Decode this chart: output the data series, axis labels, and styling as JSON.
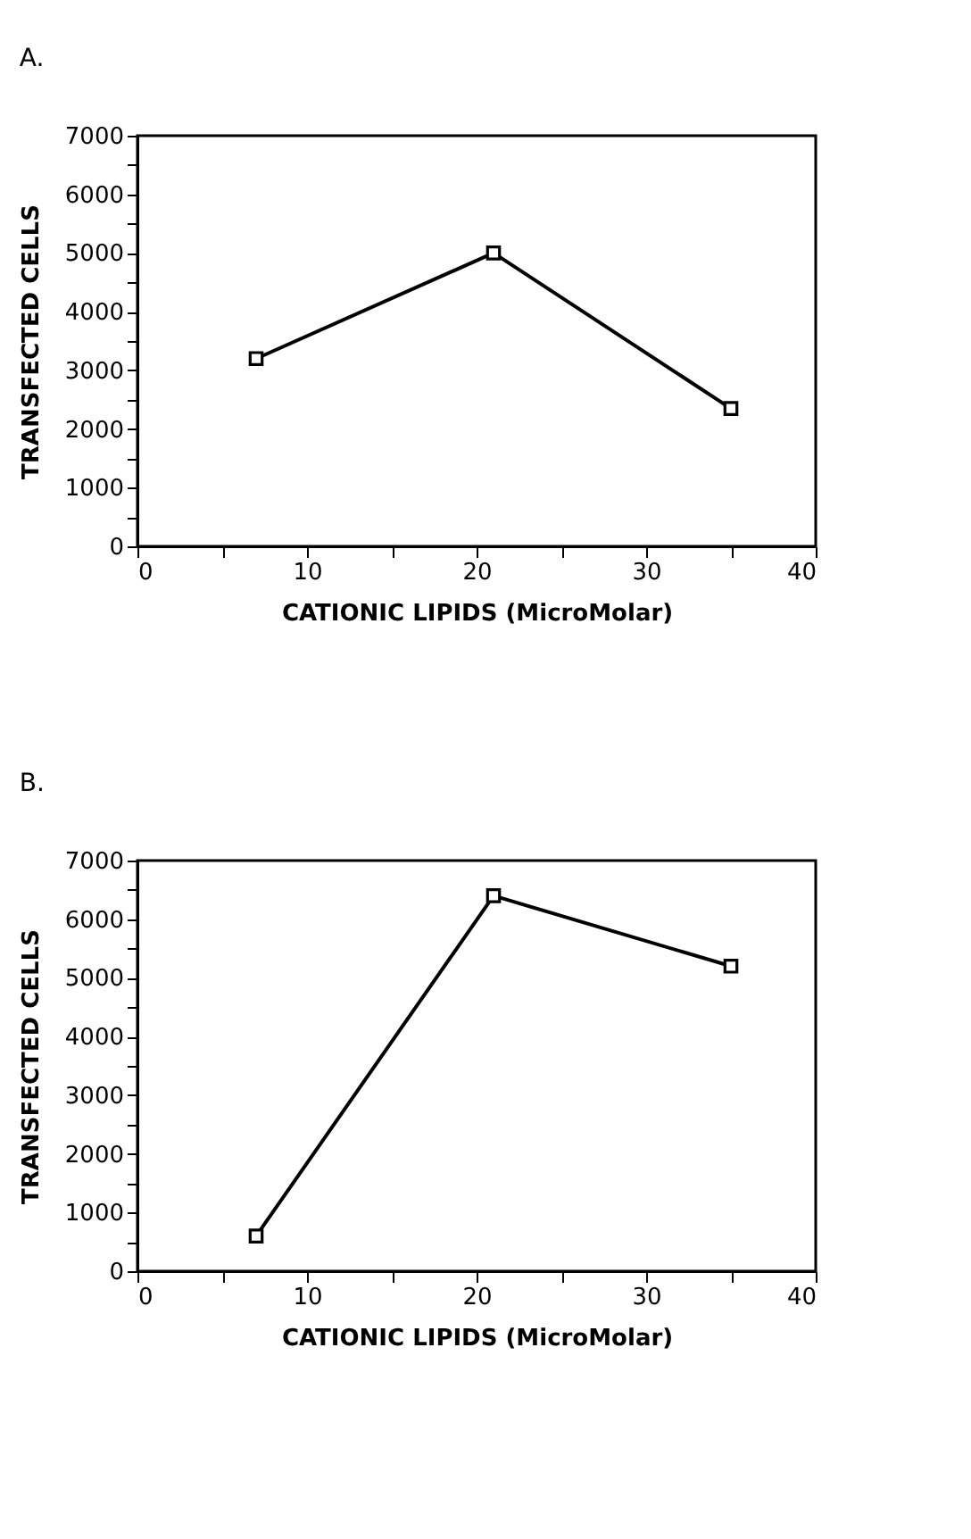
{
  "chart_data": [
    {
      "type": "line",
      "title": "A.",
      "xlabel": "CATIONIC LIPIDS (MicroMolar)",
      "ylabel": "TRANSFECTED CELLS",
      "x": [
        7,
        21,
        35
      ],
      "series": [
        {
          "color": "#000000",
          "values": [
            3200,
            5000,
            2350
          ]
        }
      ],
      "xlim": [
        0,
        40
      ],
      "xticks": [
        0,
        {
          "value": 5,
          "label": null
        },
        10,
        {
          "value": 15,
          "label": null
        },
        20,
        {
          "value": 25,
          "label": null
        },
        30,
        {
          "value": 35,
          "label": null
        },
        40
      ],
      "ylim": [
        0,
        7000
      ],
      "yticks": [
        0,
        {
          "value": 500,
          "label": null
        },
        1000,
        {
          "value": 1500,
          "label": null
        },
        2000,
        {
          "value": 2500,
          "label": null
        },
        3000,
        {
          "value": 3500,
          "label": null
        },
        4000,
        {
          "value": 4500,
          "label": null
        },
        5000,
        {
          "value": 5500,
          "label": null
        },
        6000,
        {
          "value": 6500,
          "label": null
        },
        7000
      ],
      "grid": false,
      "marker": "square",
      "line_style": "solid"
    },
    {
      "type": "line",
      "title": "B.",
      "xlabel": "CATIONIC LIPIDS (MicroMolar)",
      "ylabel": "TRANSFECTED CELLS",
      "x": [
        7,
        21,
        35
      ],
      "series": [
        {
          "color": "#000000",
          "values": [
            600,
            6400,
            5200
          ]
        }
      ],
      "xlim": [
        0,
        40
      ],
      "xticks": [
        0,
        {
          "value": 5,
          "label": null
        },
        10,
        {
          "value": 15,
          "label": null
        },
        20,
        {
          "value": 25,
          "label": null
        },
        30,
        {
          "value": 35,
          "label": null
        },
        40
      ],
      "ylim": [
        0,
        7000
      ],
      "yticks": [
        0,
        {
          "value": 500,
          "label": null
        },
        1000,
        {
          "value": 1500,
          "label": null
        },
        2000,
        {
          "value": 2500,
          "label": null
        },
        3000,
        {
          "value": 3500,
          "label": null
        },
        4000,
        {
          "value": 4500,
          "label": null
        },
        5000,
        {
          "value": 5500,
          "label": null
        },
        6000,
        {
          "value": 6500,
          "label": null
        },
        7000
      ],
      "grid": false,
      "marker": "square",
      "line_style": "solid"
    }
  ]
}
